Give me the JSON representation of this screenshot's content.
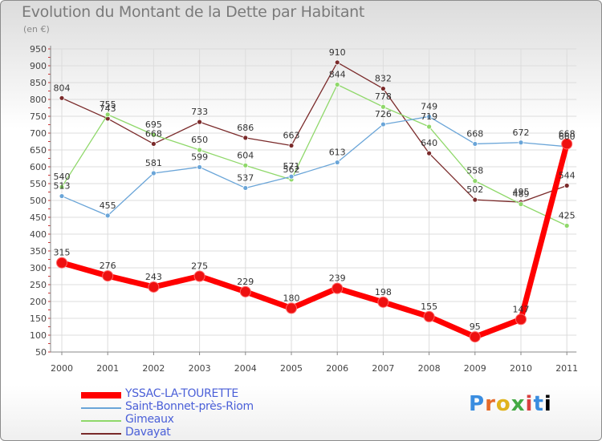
{
  "header": {
    "title": "Evolution du Montant de la Dette par Habitant",
    "subtitle": "(en €)"
  },
  "logo": {
    "text": "Proxiti"
  },
  "colors": {
    "YSSAC-LA-TOURETTE": "#ff0000",
    "Saint-Bonnet-près-Riom": "#6aa5d8",
    "Gimeaux": "#8fd86a",
    "Davayat": "#7a2a2a"
  },
  "chart_data": {
    "type": "line",
    "title": "Evolution du Montant de la Dette par Habitant",
    "ylabel": "(en €)",
    "x": [
      "2000",
      "2001",
      "2002",
      "2003",
      "2004",
      "2005",
      "2006",
      "2007",
      "2008",
      "2009",
      "2010",
      "2011"
    ],
    "ylim": [
      50,
      950
    ],
    "yticks": [
      50,
      100,
      150,
      200,
      250,
      300,
      350,
      400,
      450,
      500,
      550,
      600,
      650,
      700,
      750,
      800,
      850,
      900,
      950
    ],
    "grid": true,
    "legend_position": "bottom-left",
    "series": [
      {
        "name": "YSSAC-LA-TOURETTE",
        "values": [
          315,
          276,
          243,
          275,
          229,
          180,
          239,
          198,
          155,
          95,
          147,
          668
        ]
      },
      {
        "name": "Saint-Bonnet-près-Riom",
        "values": [
          513,
          455,
          581,
          599,
          537,
          571,
          613,
          726,
          749,
          668,
          672,
          660
        ]
      },
      {
        "name": "Gimeaux",
        "values": [
          540,
          755,
          695,
          650,
          604,
          562,
          844,
          778,
          719,
          558,
          489,
          425
        ]
      },
      {
        "name": "Davayat",
        "values": [
          804,
          743,
          668,
          733,
          686,
          663,
          910,
          832,
          640,
          502,
          495,
          544
        ]
      }
    ]
  }
}
